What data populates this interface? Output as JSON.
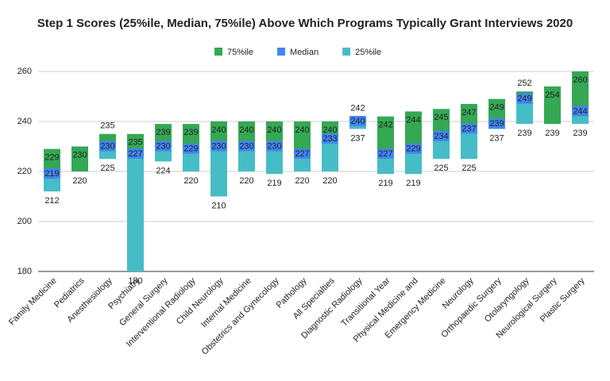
{
  "chart_data": {
    "type": "floating_range",
    "title": "Step 1 Scores (25%ile, Median, 75%ile) Above Which Programs Typically Grant Interviews 2020",
    "categories": [
      "Family Medicine",
      "Pediatrics",
      "Anesthesiology",
      "Psychiatry",
      "General Surgery",
      "Interventional Radiology",
      "Child Neurology",
      "Internal Medicine",
      "Obstetrics and Gynecology",
      "Pathology",
      "All Specialties",
      "Diagnostic Radiology",
      "Transitional Year",
      "Physical Medicine and",
      "Emergency Medicine",
      "Neurology",
      "Orthopaedic Surgery",
      "Otolaryngology",
      "Neurological Surgery",
      "Plastic Surgery"
    ],
    "series": [
      {
        "name": "75%ile",
        "color": "#34a853",
        "values": [
          229,
          230,
          235,
          235,
          239,
          239,
          240,
          240,
          240,
          240,
          240,
          242,
          242,
          244,
          245,
          247,
          249,
          252,
          254,
          260
        ]
      },
      {
        "name": "Median",
        "color": "#4285f4",
        "values": [
          219,
          null,
          230,
          227,
          230,
          229,
          230,
          230,
          230,
          227,
          233,
          240,
          227,
          229,
          234,
          237,
          239,
          249,
          null,
          244
        ]
      },
      {
        "name": "25%ile",
        "color": "#46bdc6",
        "values": [
          212,
          220,
          225,
          180,
          224,
          220,
          210,
          220,
          219,
          220,
          220,
          237,
          219,
          219,
          225,
          225,
          237,
          239,
          239,
          239
        ]
      }
    ],
    "ylim": [
      180,
      260
    ],
    "yticks": [
      180,
      200,
      220,
      240,
      260
    ],
    "grid": true,
    "legend": "top"
  }
}
